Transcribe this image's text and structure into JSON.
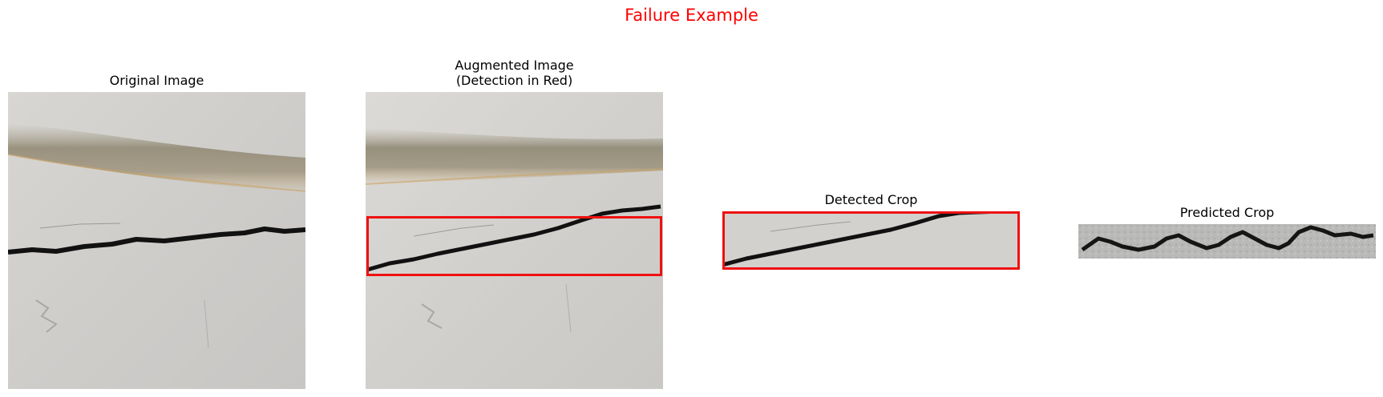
{
  "figure": {
    "title": "Failure Example",
    "title_color": "#ff0000",
    "detection_color": "#ee1111"
  },
  "panels": [
    {
      "title": "Original Image",
      "image": "wall-with-horizontal-crack-and-stain"
    },
    {
      "title": "Augmented Image\n(Detection in Red)",
      "image": "wall-with-crack-and-red-detection-box"
    },
    {
      "title": "Detected Crop",
      "image": "cropped-diagonal-crack-in-red-frame"
    },
    {
      "title": "Predicted Crop",
      "image": "zigzag-crack-on-grey-concrete"
    }
  ]
}
